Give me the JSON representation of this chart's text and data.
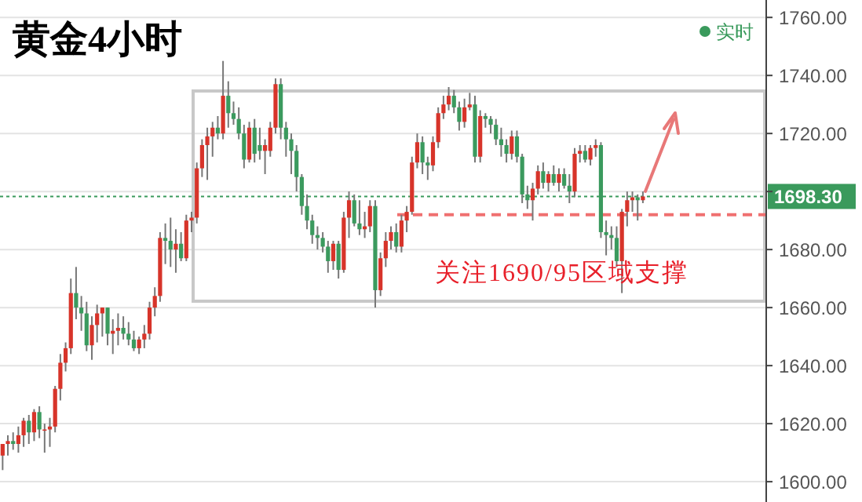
{
  "chart_data": {
    "type": "candlestick",
    "title": "黄金4小时",
    "categories": [
      null,
      null,
      null,
      null,
      null,
      null,
      null,
      null,
      null,
      null,
      null,
      null,
      null,
      null,
      null,
      null,
      null,
      null,
      null,
      null,
      null,
      null,
      null,
      null,
      null,
      null,
      null,
      null,
      null,
      null,
      null,
      null,
      null,
      null,
      null,
      null,
      null,
      null,
      null,
      null,
      null,
      null,
      null,
      null,
      null,
      null,
      null,
      null,
      null,
      null,
      null,
      null,
      null,
      null,
      null,
      null,
      null,
      null,
      null,
      null,
      null,
      null,
      null,
      null,
      null,
      null,
      null,
      null,
      null,
      null,
      null,
      null,
      null,
      null,
      null,
      null,
      null,
      null,
      null,
      null,
      null,
      null,
      null,
      null,
      null,
      null,
      null,
      null,
      null,
      null,
      null,
      null,
      null,
      null,
      null,
      null,
      null,
      null,
      null,
      null,
      null,
      null,
      null,
      null,
      null,
      null,
      null,
      null,
      null,
      null,
      null,
      null,
      null,
      null,
      null,
      null,
      null,
      null,
      null,
      null,
      null,
      null,
      null,
      null,
      null,
      null,
      null,
      null,
      null,
      null,
      null,
      null,
      null,
      null,
      null,
      null,
      null,
      null,
      null,
      null,
      null,
      null,
      null,
      null,
      null,
      null
    ],
    "series": [
      {
        "name": "实时",
        "color": "#3a9a5c",
        "colors": [
          "#d7342a",
          "#d7342a",
          "#3b9a5e",
          "#d7342a",
          "#d7342a",
          "#3b9a5e",
          "#d7342a",
          "#3b9a5e",
          "#d7342a",
          "#d7342a",
          "#d7342a",
          "#d7342a",
          "#d7342a",
          "#d7342a",
          "#3b9a5e",
          "#3b9a5e",
          "#3b9a5e",
          "#d7342a",
          "#d7342a",
          "#d7342a",
          "#3b9a5e",
          "#d7342a",
          "#d7342a",
          "#3b9a5e",
          "#3b9a5e",
          "#3b9a5e",
          "#d7342a",
          "#d7342a",
          "#d7342a",
          "#d7342a",
          "#d7342a",
          "#3b9a5e",
          "#3b9a5e",
          "#d7342a",
          "#3b9a5e",
          "#d7342a",
          "#d7342a",
          "#d7342a",
          "#d7342a",
          "#d7342a",
          "#d7342a",
          "#3b9a5e",
          "#d7342a",
          "#3b9a5e",
          "#3b9a5e",
          "#3b9a5e",
          "#3b9a5e",
          "#d7342a",
          "#3b9a5e",
          "#3b9a5e",
          "#d7342a",
          "#d7342a",
          "#d7342a",
          "#3b9a5e",
          "#3b9a5e",
          "#3b9a5e",
          "#3b9a5e",
          "#3b9a5e",
          "#3b9a5e",
          "#3b9a5e",
          "#3b9a5e",
          "#3b9a5e",
          "#3b9a5e",
          "#d7342a",
          "#3b9a5e",
          "#d7342a",
          "#d7342a",
          "#3b9a5e",
          "#3b9a5e",
          "#d7342a",
          "#d7342a",
          "#3b9a5e",
          "#d7342a",
          "#d7342a",
          "#d7342a",
          "#3b9a5e",
          "#d7342a",
          "#d7342a",
          "#d7342a",
          "#d7342a",
          "#3b9a5e",
          "#3b9a5e",
          "#d7342a",
          "#d7342a",
          "#d7342a",
          "#d7342a",
          "#3b9a5e",
          "#3b9a5e",
          "#d7342a",
          "#d7342a",
          "#3b9a5e",
          "#d7342a",
          "#3b9a5e",
          "#3b9a5e",
          "#3b9a5e",
          "#3b9a5e",
          "#3b9a5e",
          "#d7342a",
          "#3b9a5e",
          "#3b9a5e",
          "#3b9a5e",
          "#d7342a",
          "#d7342a",
          "#3b9a5e",
          "#d7342a",
          "#3b9a5e",
          "#d7342a",
          "#3b9a5e",
          "#3b9a5e",
          "#d7342a",
          "#d7342a",
          "#3b9a5e",
          "#d7342a",
          "#d7342a",
          "#3b9a5e",
          "#3b9a5e",
          "#3b9a5e",
          "#3b9a5e",
          "#d7342a",
          "#d7342a",
          "#d7342a",
          "#3b9a5e",
          "#d7342a",
          null,
          null,
          null,
          null,
          null,
          null,
          null,
          null,
          null,
          null,
          null,
          null,
          null,
          null,
          null,
          null,
          null,
          null,
          null,
          null,
          null,
          null,
          null
        ],
        "ohlc": [
          [
            1609,
            1613,
            1604,
            1613
          ],
          [
            1613,
            1616,
            1609,
            1614
          ],
          [
            1614,
            1617,
            1611,
            1613
          ],
          [
            1613,
            1619,
            1610,
            1616
          ],
          [
            1616,
            1622,
            1612,
            1621
          ],
          [
            1621,
            1623,
            1613,
            1617
          ],
          [
            1617,
            1625,
            1614,
            1624
          ],
          [
            1624,
            1626,
            1615,
            1618
          ],
          [
            1618,
            1620,
            1610,
            1618
          ],
          [
            1618,
            1622,
            1612,
            1619
          ],
          [
            1619,
            1633,
            1617,
            1632
          ],
          [
            1632,
            1644,
            1628,
            1641
          ],
          [
            1641,
            1648,
            1638,
            1646
          ],
          [
            1646,
            1670,
            1644,
            1665
          ],
          [
            1665,
            1674,
            1656,
            1660
          ],
          [
            1660,
            1664,
            1652,
            1658
          ],
          [
            1658,
            1662,
            1645,
            1647
          ],
          [
            1647,
            1657,
            1642,
            1654
          ],
          [
            1654,
            1661,
            1648,
            1658
          ],
          [
            1658,
            1660,
            1650,
            1660
          ],
          [
            1660,
            1660,
            1647,
            1651
          ],
          [
            1651,
            1656,
            1644,
            1652
          ],
          [
            1652,
            1658,
            1647,
            1653
          ],
          [
            1653,
            1657,
            1649,
            1651
          ],
          [
            1651,
            1655,
            1647,
            1649
          ],
          [
            1649,
            1652,
            1645,
            1646
          ],
          [
            1646,
            1650,
            1644,
            1649
          ],
          [
            1649,
            1654,
            1646,
            1651
          ],
          [
            1651,
            1662,
            1649,
            1660
          ],
          [
            1660,
            1667,
            1657,
            1664
          ],
          [
            1664,
            1686,
            1662,
            1684
          ],
          [
            1684,
            1689,
            1675,
            1683
          ],
          [
            1683,
            1691,
            1674,
            1680
          ],
          [
            1680,
            1687,
            1672,
            1682
          ],
          [
            1682,
            1686,
            1676,
            1677
          ],
          [
            1677,
            1692,
            1676,
            1690
          ],
          [
            1690,
            1693,
            1686,
            1691
          ],
          [
            1691,
            1710,
            1689,
            1708
          ],
          [
            1708,
            1718,
            1705,
            1716
          ],
          [
            1716,
            1722,
            1704,
            1719
          ],
          [
            1719,
            1724,
            1712,
            1722
          ],
          [
            1722,
            1726,
            1718,
            1720
          ],
          [
            1720,
            1745,
            1718,
            1733
          ],
          [
            1733,
            1738,
            1722,
            1727
          ],
          [
            1727,
            1731,
            1723,
            1725
          ],
          [
            1725,
            1729,
            1718,
            1720
          ],
          [
            1720,
            1723,
            1708,
            1711
          ],
          [
            1711,
            1724,
            1710,
            1722
          ],
          [
            1722,
            1725,
            1710,
            1713
          ],
          [
            1716,
            1722,
            1711,
            1714
          ],
          [
            1714,
            1718,
            1706,
            1716
          ],
          [
            1714,
            1724,
            1712,
            1722
          ],
          [
            1722,
            1739,
            1720,
            1737
          ],
          [
            1737,
            1739,
            1718,
            1722
          ],
          [
            1722,
            1724,
            1712,
            1718
          ],
          [
            1718,
            1720,
            1706,
            1714
          ],
          [
            1714,
            1716,
            1700,
            1705
          ],
          [
            1705,
            1706,
            1692,
            1695
          ],
          [
            1695,
            1699,
            1687,
            1690
          ],
          [
            1690,
            1692,
            1682,
            1685
          ],
          [
            1685,
            1688,
            1680,
            1684
          ],
          [
            1684,
            1686,
            1679,
            1681
          ],
          [
            1681,
            1683,
            1672,
            1676
          ],
          [
            1676,
            1683,
            1673,
            1682
          ],
          [
            1682,
            1683,
            1670,
            1673
          ],
          [
            1673,
            1693,
            1672,
            1691
          ],
          [
            1691,
            1700,
            1684,
            1697
          ],
          [
            1697,
            1699,
            1688,
            1689
          ],
          [
            1689,
            1697,
            1685,
            1687
          ],
          [
            1687,
            1693,
            1684,
            1688
          ],
          [
            1688,
            1697,
            1686,
            1695
          ],
          [
            1695,
            1697,
            1660,
            1666
          ],
          [
            1666,
            1679,
            1664,
            1677
          ],
          [
            1677,
            1686,
            1674,
            1683
          ],
          [
            1683,
            1688,
            1680,
            1686
          ],
          [
            1686,
            1689,
            1679,
            1681
          ],
          [
            1681,
            1692,
            1679,
            1690
          ],
          [
            1690,
            1695,
            1686,
            1693
          ],
          [
            1693,
            1712,
            1692,
            1710
          ],
          [
            1710,
            1720,
            1708,
            1717
          ],
          [
            1717,
            1719,
            1706,
            1710
          ],
          [
            1710,
            1712,
            1704,
            1709
          ],
          [
            1709,
            1719,
            1707,
            1717
          ],
          [
            1717,
            1729,
            1715,
            1727
          ],
          [
            1727,
            1733,
            1725,
            1730
          ],
          [
            1730,
            1736,
            1728,
            1733
          ],
          [
            1733,
            1735,
            1727,
            1729
          ],
          [
            1729,
            1731,
            1721,
            1724
          ],
          [
            1724,
            1732,
            1722,
            1729
          ],
          [
            1729,
            1734,
            1728,
            1730
          ],
          [
            1730,
            1733,
            1710,
            1712
          ],
          [
            1712,
            1728,
            1710,
            1726
          ],
          [
            1726,
            1727,
            1722,
            1725
          ],
          [
            1725,
            1726,
            1720,
            1723
          ],
          [
            1723,
            1725,
            1716,
            1718
          ],
          [
            1718,
            1722,
            1712,
            1716
          ],
          [
            1716,
            1718,
            1710,
            1713
          ],
          [
            1713,
            1721,
            1711,
            1719
          ],
          [
            1719,
            1721,
            1710,
            1712
          ],
          [
            1712,
            1713,
            1696,
            1699
          ],
          [
            1699,
            1702,
            1694,
            1697
          ],
          [
            1697,
            1703,
            1690,
            1701
          ],
          [
            1701,
            1709,
            1699,
            1707
          ],
          [
            1707,
            1710,
            1701,
            1703
          ],
          [
            1703,
            1707,
            1700,
            1706
          ],
          [
            1706,
            1709,
            1702,
            1703
          ],
          [
            1703,
            1708,
            1700,
            1706
          ],
          [
            1706,
            1708,
            1701,
            1702
          ],
          [
            1702,
            1706,
            1696,
            1700
          ],
          [
            1700,
            1715,
            1698,
            1713
          ],
          [
            1713,
            1716,
            1710,
            1714
          ],
          [
            1714,
            1716,
            1710,
            1711
          ],
          [
            1711,
            1716,
            1709,
            1715
          ],
          [
            1715,
            1718,
            1712,
            1716
          ],
          [
            1716,
            1717,
            1684,
            1686
          ],
          [
            1686,
            1690,
            1678,
            1685
          ],
          [
            1685,
            1688,
            1680,
            1684
          ],
          [
            1684,
            1688,
            1674,
            1676
          ],
          [
            1676,
            1694,
            1665,
            1693
          ],
          [
            1693,
            1700,
            1688,
            1697
          ],
          [
            1697,
            1700,
            1693,
            1698
          ],
          [
            1698,
            1699,
            1690,
            1697
          ],
          [
            1697,
            1700,
            1696,
            1698.3
          ],
          null,
          null,
          null,
          null,
          null,
          null,
          null,
          null,
          null,
          null,
          null,
          null,
          null,
          null,
          null,
          null,
          null,
          null,
          null,
          null,
          null,
          null,
          null
        ]
      }
    ],
    "ylim": [
      1593,
      1766
    ],
    "yticks": [
      {
        "value": 1600,
        "label": "1600.00"
      },
      {
        "value": 1620,
        "label": "1620.00"
      },
      {
        "value": 1640,
        "label": "1640.00"
      },
      {
        "value": 1660,
        "label": "1660.00"
      },
      {
        "value": 1680,
        "label": "1680.00"
      },
      {
        "value": 1700,
        "label": null
      },
      {
        "value": 1720,
        "label": "1720.00"
      },
      {
        "value": 1740,
        "label": "1740.00"
      },
      {
        "value": 1760,
        "label": "1760.00"
      }
    ],
    "grid": "y",
    "legend": "top right",
    "ref_lines": [
      {
        "axis": "y",
        "value": 1698.3,
        "label": "1698.30",
        "color": "#3a9a5c",
        "line_style": "dotted"
      },
      {
        "axis": "y",
        "value": 1692,
        "label": null,
        "color": "#f07070",
        "line_style": "dashed"
      }
    ],
    "annotations": [
      "关注1690/95区域支撑"
    ]
  }
}
